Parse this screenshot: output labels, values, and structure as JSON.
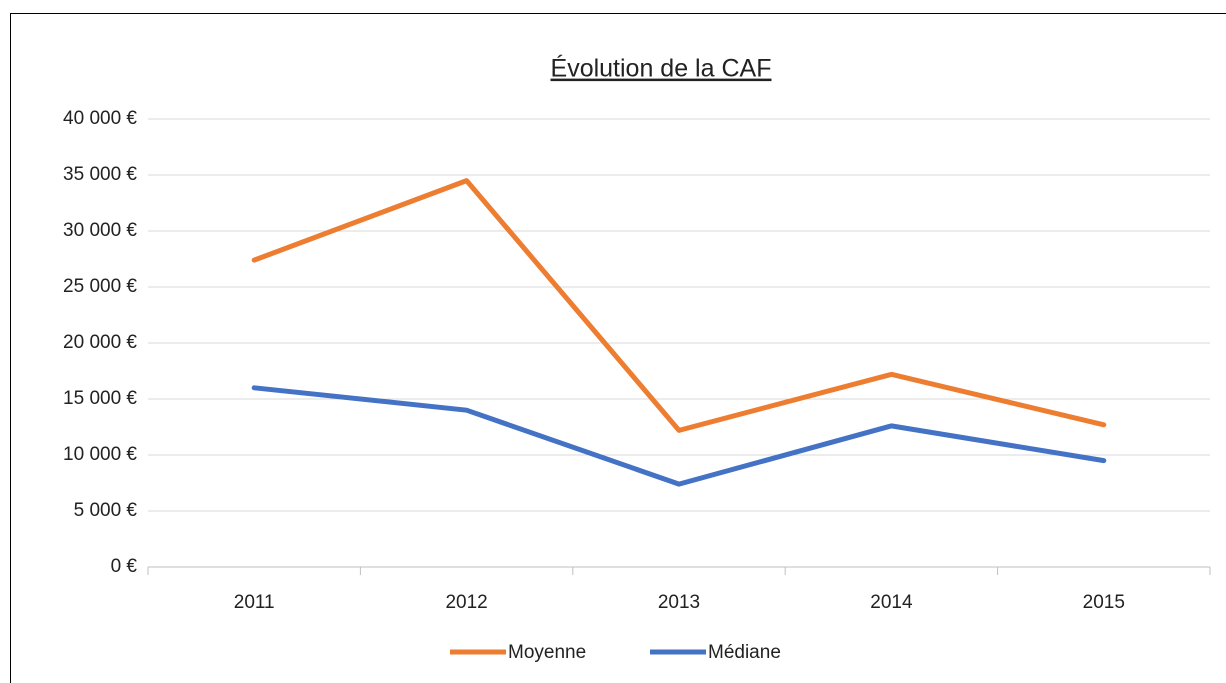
{
  "chart_data": {
    "type": "line",
    "title": "Évolution de la CAF",
    "categories": [
      "2011",
      "2012",
      "2013",
      "2014",
      "2015"
    ],
    "series": [
      {
        "name": "Moyenne",
        "color": "#ed7d31",
        "values": [
          27400,
          34500,
          12200,
          17200,
          12700
        ]
      },
      {
        "name": "Médiane",
        "color": "#4472c4",
        "values": [
          16000,
          14000,
          7400,
          12600,
          9500
        ]
      }
    ],
    "ylim": [
      0,
      40000
    ],
    "yticks": [
      {
        "value": 0,
        "label": "0 €"
      },
      {
        "value": 5000,
        "label": "5 000 €"
      },
      {
        "value": 10000,
        "label": "10 000 €"
      },
      {
        "value": 15000,
        "label": "15 000 €"
      },
      {
        "value": 20000,
        "label": "20 000 €"
      },
      {
        "value": 25000,
        "label": "25 000 €"
      },
      {
        "value": 30000,
        "label": "30 000 €"
      },
      {
        "value": 35000,
        "label": "35 000 €"
      },
      {
        "value": 40000,
        "label": "40 000 €"
      }
    ],
    "grid": true,
    "legend": "bottom"
  }
}
